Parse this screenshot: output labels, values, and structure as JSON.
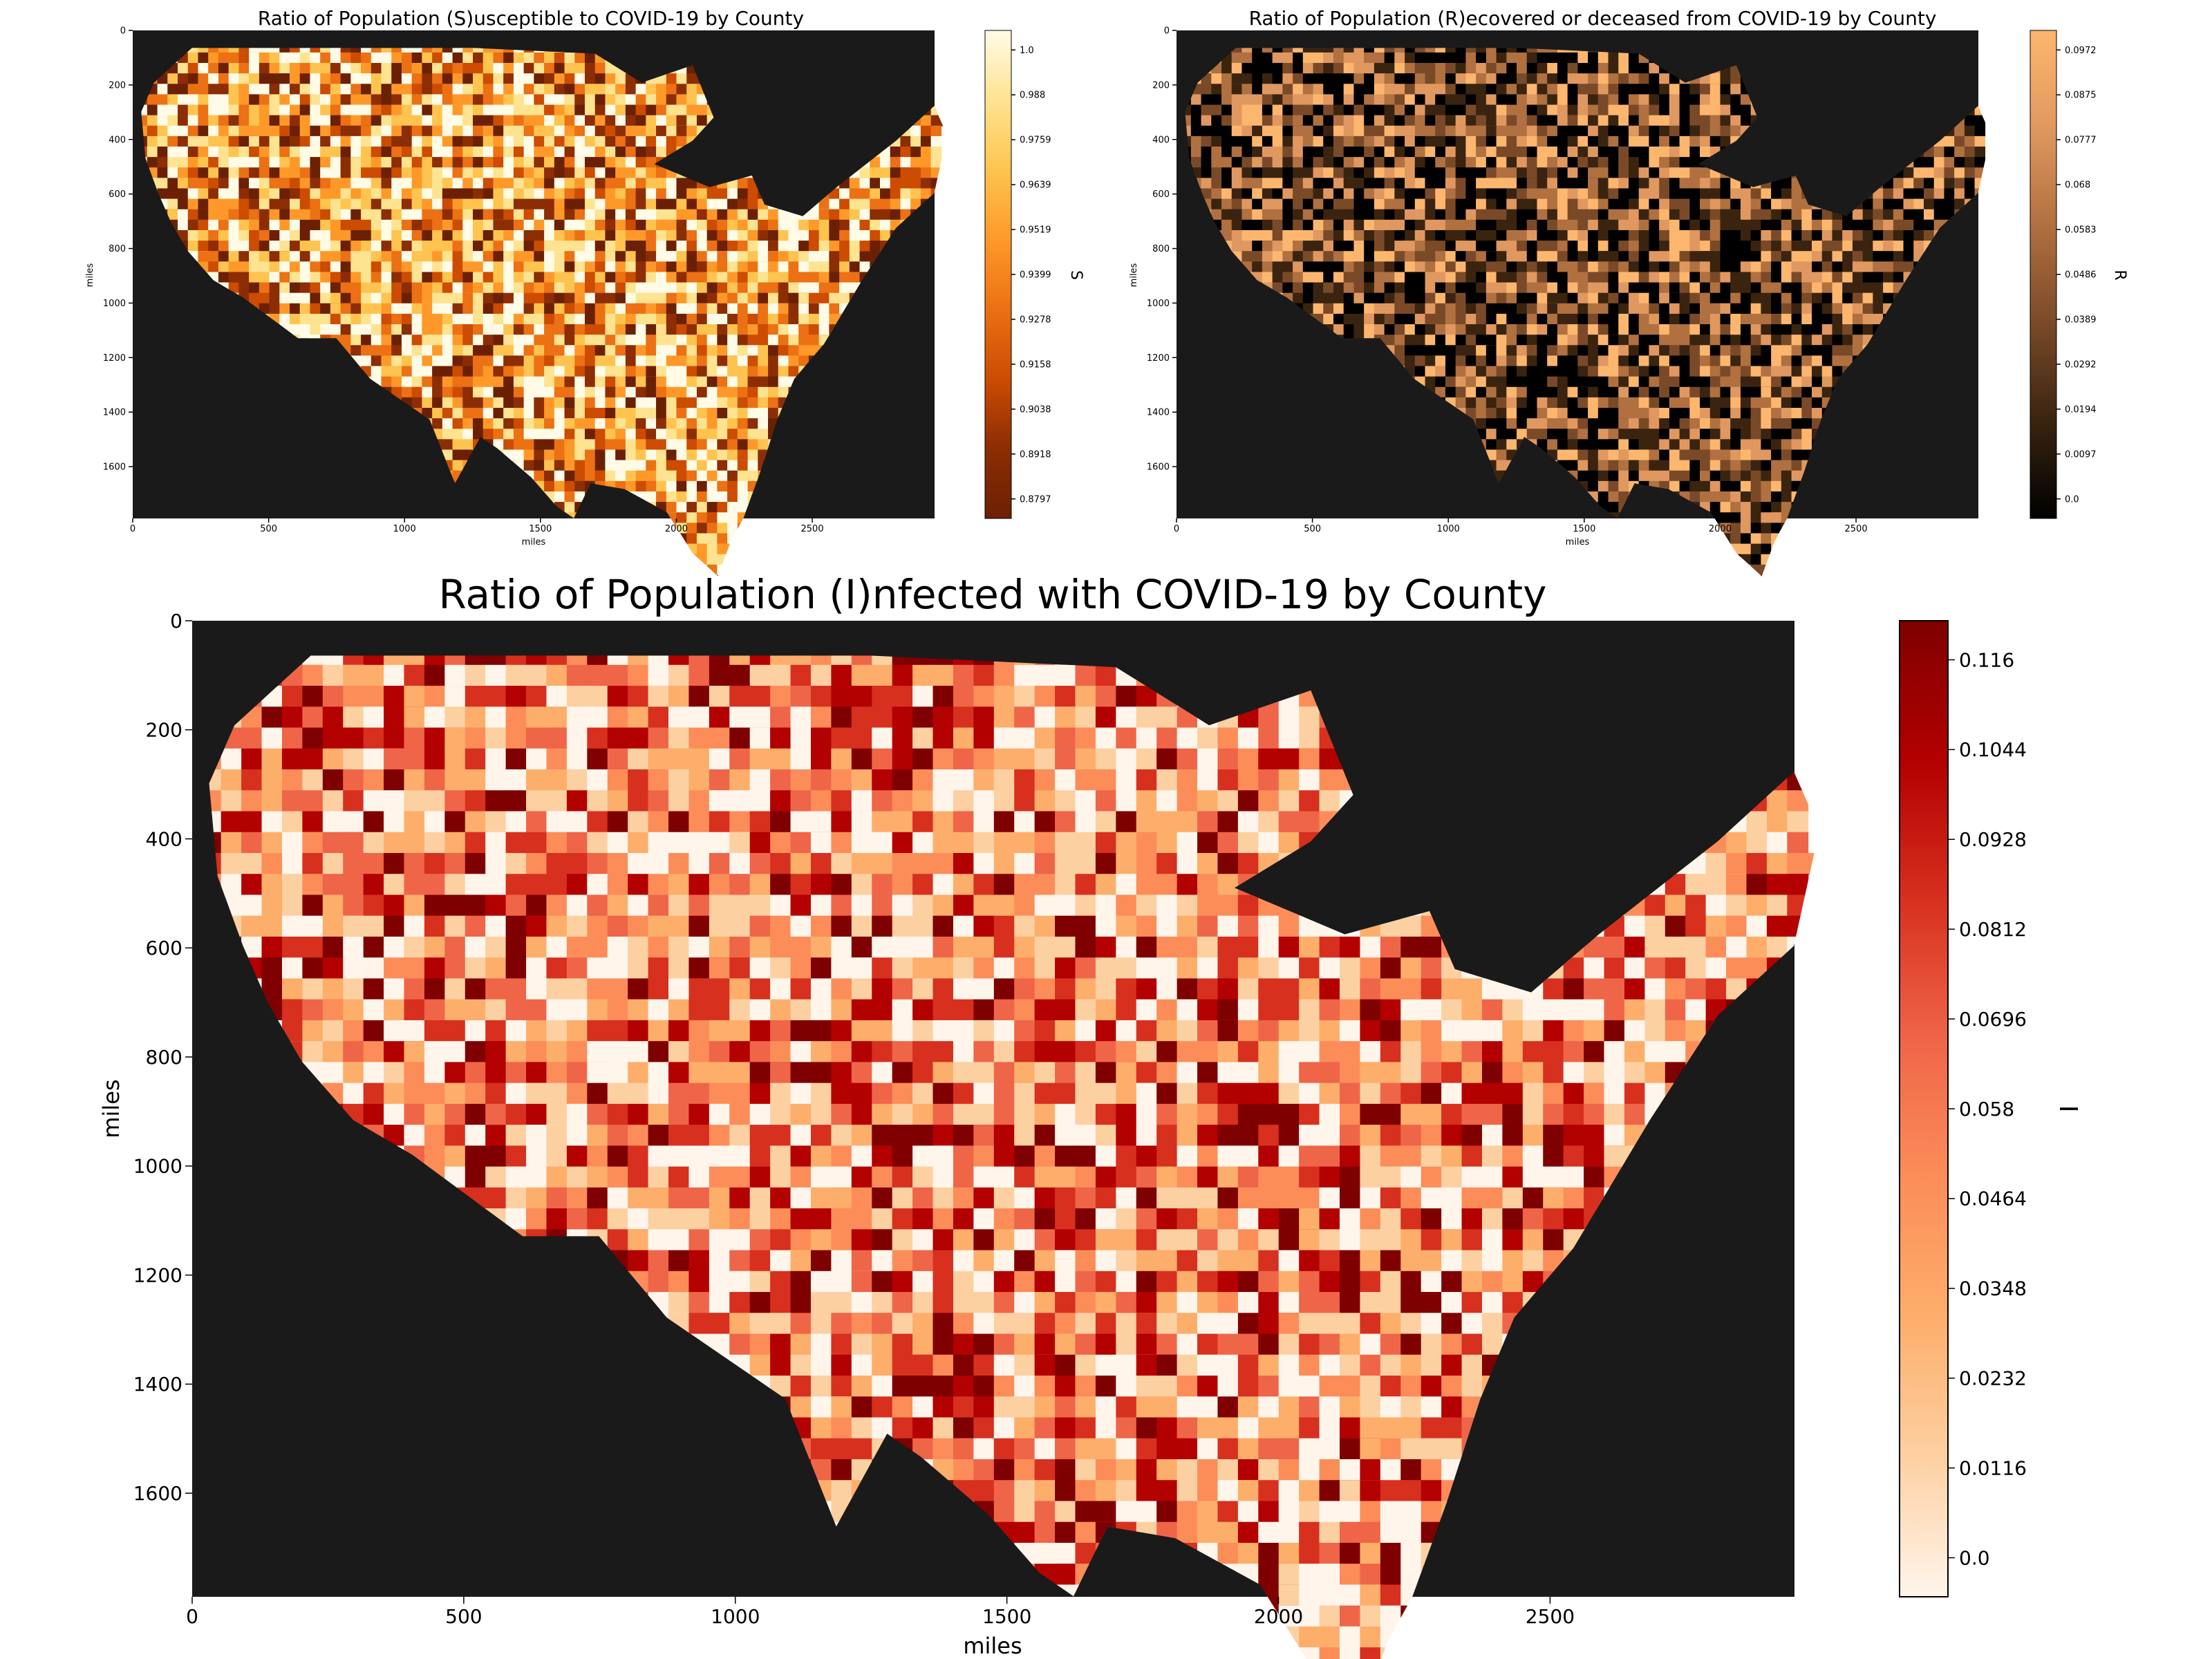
{
  "panels": {
    "susceptible": {
      "title": "Ratio of Population (S)usceptible to COVID-19 by County",
      "xlabel": "miles",
      "ylabel": "miles",
      "x_ticks": [
        "0",
        "500",
        "1000",
        "1500",
        "2000",
        "2500"
      ],
      "y_ticks": [
        "0",
        "200",
        "400",
        "600",
        "800",
        "1000",
        "1200",
        "1400",
        "1600"
      ],
      "colorbar_label": "S",
      "colorbar_ticks": [
        "1.0",
        "0.988",
        "0.9759",
        "0.9639",
        "0.9519",
        "0.9399",
        "0.9278",
        "0.9158",
        "0.9038",
        "0.8918",
        "0.8797"
      ],
      "colormap": [
        "#fffbe6",
        "#fee391",
        "#fec44f",
        "#fe9929",
        "#ec7014",
        "#cc4c02",
        "#8c2d04",
        "#6b2004"
      ]
    },
    "recovered": {
      "title": "Ratio of Population (R)ecovered or deceased from COVID-19 by County",
      "xlabel": "miles",
      "ylabel": "miles",
      "x_ticks": [
        "0",
        "500",
        "1000",
        "1500",
        "2000",
        "2500"
      ],
      "y_ticks": [
        "0",
        "200",
        "400",
        "600",
        "800",
        "1000",
        "1200",
        "1400",
        "1600"
      ],
      "colorbar_label": "R",
      "colorbar_ticks": [
        "0.0972",
        "0.0875",
        "0.0777",
        "0.068",
        "0.0583",
        "0.0486",
        "0.0389",
        "0.0292",
        "0.0194",
        "0.0097",
        "0.0"
      ],
      "colormap": [
        "#000000",
        "#3a2410",
        "#7a4a28",
        "#b07040",
        "#e09860",
        "#fdb66e"
      ]
    },
    "infected": {
      "title": "Ratio of Population (I)nfected with COVID-19 by County",
      "xlabel": "miles",
      "ylabel": "miles",
      "x_ticks": [
        "0",
        "500",
        "1000",
        "1500",
        "2000",
        "2500"
      ],
      "y_ticks": [
        "0",
        "200",
        "400",
        "600",
        "800",
        "1000",
        "1200",
        "1400",
        "1600"
      ],
      "colorbar_label": "I",
      "colorbar_ticks": [
        "0.116",
        "0.1044",
        "0.0928",
        "0.0812",
        "0.0696",
        "0.058",
        "0.0464",
        "0.0348",
        "0.0232",
        "0.0116",
        "0.0"
      ],
      "colormap": [
        "#fff5eb",
        "#fdd0a2",
        "#fdae6b",
        "#fc8d59",
        "#ef6548",
        "#d7301f",
        "#b30000",
        "#7f0000"
      ]
    }
  },
  "background_color": "#1a1a1a"
}
